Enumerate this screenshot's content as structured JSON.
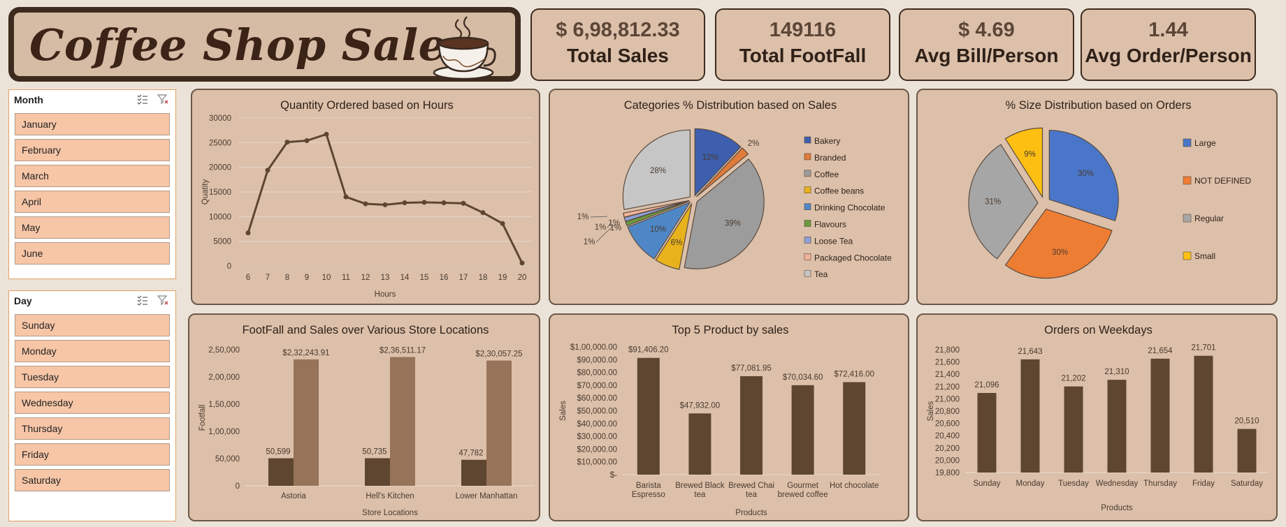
{
  "header": {
    "title": "Coffee Shop Sales"
  },
  "kpis": [
    {
      "value": "$ 6,98,812.33",
      "label": "Total Sales"
    },
    {
      "value": "149116",
      "label": "Total FootFall"
    },
    {
      "value": "$ 4.69",
      "label": "Avg Bill/Person"
    },
    {
      "value": "1.44",
      "label": "Avg Order/Person"
    }
  ],
  "slicers": {
    "month": {
      "title": "Month",
      "items": [
        "January",
        "February",
        "March",
        "April",
        "May",
        "June"
      ]
    },
    "day": {
      "title": "Day",
      "items": [
        "Sunday",
        "Monday",
        "Tuesday",
        "Wednesday",
        "Thursday",
        "Friday",
        "Saturday"
      ]
    }
  },
  "colors": {
    "dark_brown": "#5e4630",
    "light_brown": "#97735a",
    "panel": "#dcc0aa"
  },
  "chart_data": [
    {
      "id": "hours",
      "type": "line",
      "title": "Quantity Ordered based on Hours",
      "xlabel": "Hours",
      "ylabel": "Quatity",
      "x": [
        6,
        7,
        8,
        9,
        10,
        11,
        12,
        13,
        14,
        15,
        16,
        17,
        18,
        19,
        20
      ],
      "values": [
        6700,
        19400,
        25100,
        25400,
        26700,
        14000,
        12600,
        12400,
        12800,
        12900,
        12800,
        12700,
        10800,
        8600,
        600
      ],
      "ylim": [
        0,
        30000
      ],
      "yticks": [
        "0",
        "5000",
        "10000",
        "15000",
        "20000",
        "25000",
        "30000"
      ],
      "grid": true
    },
    {
      "id": "categories",
      "type": "pie",
      "title": "Categories % Distribution based on Sales",
      "series": [
        {
          "name": "Bakery",
          "value": 12,
          "label": "12%",
          "color": "#3d5fae"
        },
        {
          "name": "Branded",
          "value": 2,
          "label": "2%",
          "color": "#e07b39"
        },
        {
          "name": "Coffee",
          "value": 39,
          "label": "39%",
          "color": "#9c9c9c"
        },
        {
          "name": "Coffee beans",
          "value": 6,
          "label": "6%",
          "color": "#e8b21d"
        },
        {
          "name": "Drinking Chocolate",
          "value": 10,
          "label": "10%",
          "color": "#4f87c6"
        },
        {
          "name": "Flavours",
          "value": 1,
          "label": "1%",
          "color": "#6b9a3e"
        },
        {
          "name": "Loose Tea",
          "value": 1,
          "label": "1%",
          "color": "#8fa0d8"
        },
        {
          "name": "Packaged Chocolate",
          "value": 1,
          "label": "",
          "color": "#f1b49a"
        },
        {
          "name": "Tea",
          "value": 28,
          "label": "28%",
          "color": "#c6c6c6"
        }
      ],
      "extra_labels": [
        "1%"
      ]
    },
    {
      "id": "sizes",
      "type": "pie",
      "title": "% Size Distribution based on Orders",
      "series": [
        {
          "name": "Large",
          "value": 30,
          "label": "30%",
          "color": "#4a76c9"
        },
        {
          "name": "NOT DEFINED",
          "value": 30,
          "label": "30%",
          "color": "#ee7d34"
        },
        {
          "name": "Regular",
          "value": 31,
          "label": "31%",
          "color": "#a6a6a6"
        },
        {
          "name": "Small",
          "value": 9,
          "label": "9%",
          "color": "#fcbf12"
        }
      ]
    },
    {
      "id": "locations",
      "type": "bar",
      "title": "FootFall and Sales over Various Store Locations",
      "xlabel": "Store Locations",
      "ylabel": "Footfall",
      "categories": [
        "Astoria",
        "Hell's Kitchen",
        "Lower Manhattan"
      ],
      "series": [
        {
          "values": [
            50599,
            50735,
            47782
          ],
          "labels": [
            "50,599",
            "50,735",
            "47,782"
          ],
          "color": "#5e4630"
        },
        {
          "values": [
            232243.91,
            236511.17,
            230057.25
          ],
          "labels": [
            "$2,32,243.91",
            "$2,36,511.17",
            "$2,30,057.25"
          ],
          "color": "#97735a"
        }
      ],
      "ylim": [
        0,
        250000
      ],
      "yticks": [
        "0",
        "50,000",
        "1,00,000",
        "1,50,000",
        "2,00,000",
        "2,50,000"
      ]
    },
    {
      "id": "top5",
      "type": "bar",
      "title": "Top 5 Product by sales",
      "xlabel": "Products",
      "ylabel": "Sales",
      "categories": [
        [
          "Barista",
          "Espresso"
        ],
        [
          "Brewed Black",
          "tea"
        ],
        [
          "Brewed Chai",
          "tea"
        ],
        [
          "Gourmet",
          "brewed coffee"
        ],
        [
          "Hot chocolate"
        ]
      ],
      "values": [
        91406.2,
        47932.0,
        77081.95,
        70034.6,
        72416.0
      ],
      "labels": [
        "$91,406.20",
        "$47,932.00",
        "$77,081.95",
        "$70,034.60",
        "$72,416.00"
      ],
      "ylim": [
        0,
        100000
      ],
      "yticks": [
        "$-",
        "$10,000.00",
        "$20,000.00",
        "$30,000.00",
        "$40,000.00",
        "$50,000.00",
        "$60,000.00",
        "$70,000.00",
        "$80,000.00",
        "$90,000.00",
        "$1,00,000.00"
      ]
    },
    {
      "id": "weekdays",
      "type": "bar",
      "title": "Orders on Weekdays",
      "xlabel": "Products",
      "ylabel": "Sales",
      "categories": [
        "Sunday",
        "Monday",
        "Tuesday",
        "Wednesday",
        "Thursday",
        "Friday",
        "Saturday"
      ],
      "values": [
        21096,
        21643,
        21202,
        21310,
        21654,
        21701,
        20510
      ],
      "labels": [
        "21,096",
        "21,643",
        "21,202",
        "21,310",
        "21,654",
        "21,701",
        "20,510"
      ],
      "ylim": [
        19800,
        21800
      ],
      "yticks": [
        "19,800",
        "20,000",
        "20,200",
        "20,400",
        "20,600",
        "20,800",
        "21,000",
        "21,200",
        "21,400",
        "21,600",
        "21,800"
      ]
    }
  ]
}
